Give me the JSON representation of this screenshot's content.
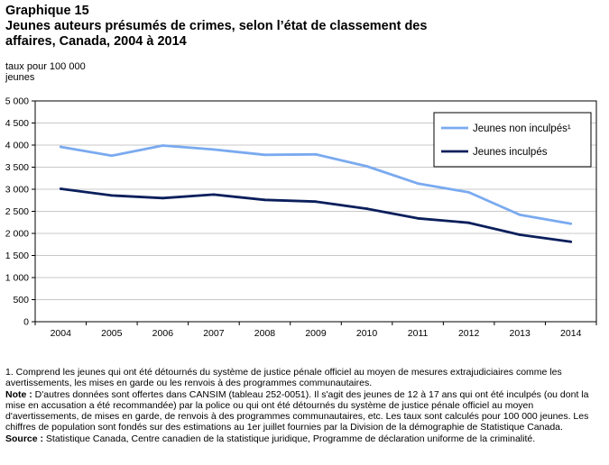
{
  "header": {
    "graph_label": "Graphique 15",
    "title_line1": "Jeunes auteurs présumés de crimes, selon l’état de classement des",
    "title_line2": "affaires, Canada, 2004 à 2014",
    "unit_line1": "taux pour 100 000",
    "unit_line2": "jeunes"
  },
  "chart_data": {
    "type": "line",
    "title": "Jeunes auteurs présumés de crimes, selon l’état de classement des affaires, Canada, 2004 à 2014",
    "ylabel": "taux pour 100 000 jeunes",
    "xlabel": "",
    "categories": [
      "2004",
      "2005",
      "2006",
      "2007",
      "2008",
      "2009",
      "2010",
      "2011",
      "2012",
      "2013",
      "2014"
    ],
    "yticks": [
      "0",
      "500",
      "1 000",
      "1 500",
      "2 000",
      "2 500",
      "3 000",
      "3 500",
      "4 000",
      "4 500",
      "5 000"
    ],
    "ylim": [
      0,
      5000
    ],
    "grid": true,
    "legend_position": "top-right",
    "series": [
      {
        "name": "Jeunes non inculpés¹",
        "color": "#7aaaf0",
        "values": [
          3960,
          3760,
          3990,
          3900,
          3780,
          3790,
          3520,
          3130,
          2930,
          2420,
          2220
        ]
      },
      {
        "name": "Jeunes inculpés",
        "color": "#0b1f5c",
        "values": [
          3010,
          2860,
          2800,
          2880,
          2760,
          2720,
          2560,
          2340,
          2240,
          1970,
          1810
        ]
      }
    ]
  },
  "notes": {
    "footnote1": "1. Comprend les jeunes qui ont été détournés du système de justice pénale officiel au moyen de mesures extrajudiciaires comme les avertissements, les mises en garde ou les renvois à des programmes communautaires.",
    "note_label": "Note :",
    "note_text": " D'autres données sont offertes dans CANSIM (tableau 252-0051). Il s'agit des jeunes de 12 à 17 ans qui ont été inculpés (ou dont la mise en accusation a été recommandée) par la police ou qui ont été détournés du système de justice pénale officiel au moyen d'avertissements, de mises en garde, de renvois à des programmes communautaires, etc. Les taux sont calculés pour 100 000 jeunes. Les chiffres de population sont fondés sur des estimations au 1er juillet fournies par la Division de la démographie de Statistique Canada.",
    "source_label": "Source :",
    "source_text": " Statistique Canada, Centre canadien de la statistique juridique, Programme de déclaration uniforme de la criminalité."
  }
}
